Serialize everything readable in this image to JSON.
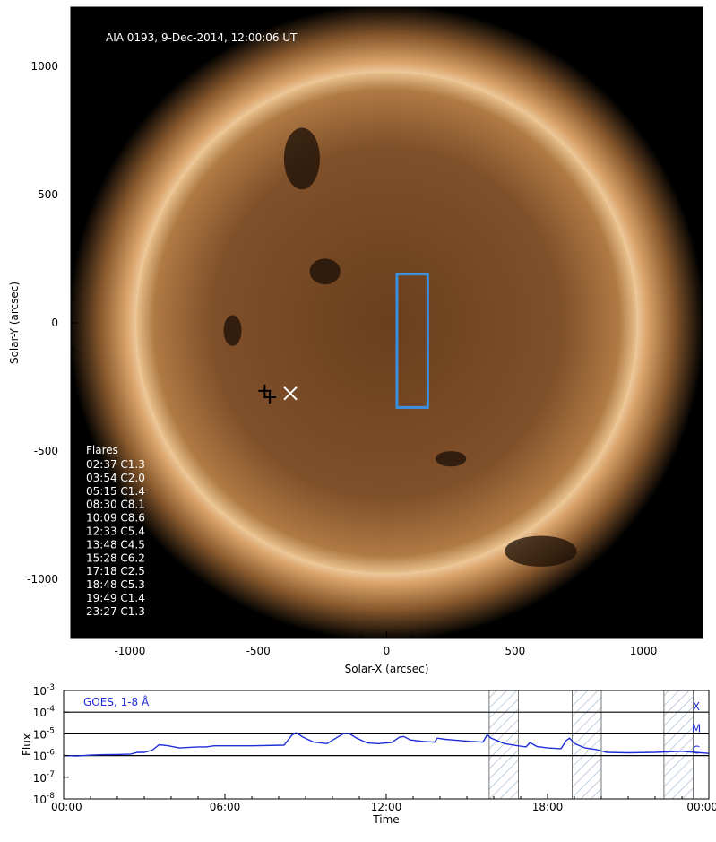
{
  "chart_data": [
    {
      "type": "image",
      "title": "AIA 0193, 9-Dec-2014, 12:00:06 UT",
      "xlabel": "Solar-X (arcsec)",
      "ylabel": "Solar-Y (arcsec)",
      "xlim": [
        -1230,
        1230
      ],
      "ylim": [
        -1230,
        1230
      ],
      "xticks": [
        -1000,
        -500,
        0,
        500,
        1000
      ],
      "yticks": [
        1000,
        500,
        0,
        -500,
        -1000
      ],
      "xtick_labels": [
        "-1000",
        "-500",
        "0",
        "500",
        "1000"
      ],
      "ytick_labels": [
        "1000",
        "500",
        "0",
        "-500",
        "-1000"
      ],
      "solar_radius_arcsec": 975,
      "colors": {
        "background": "#000000",
        "disk": "#7a4a22",
        "corona": "#d9a36a",
        "box": "#3b8fe0"
      },
      "box_region": {
        "x": [
          40,
          160
        ],
        "y": [
          -330,
          190
        ]
      },
      "markers": [
        {
          "symbol": "+",
          "x": -475,
          "y": -265,
          "color": "#000000"
        },
        {
          "symbol": "+",
          "x": -455,
          "y": -290,
          "color": "#000000"
        },
        {
          "symbol": "x",
          "x": -375,
          "y": -275,
          "color": "#ffffff"
        }
      ],
      "flares_header": "Flares",
      "flares": [
        "02:37 C1.3",
        "03:54 C2.0",
        "05:15 C1.4",
        "08:30 C8.1",
        "10:09 C8.6",
        "12:33 C5.4",
        "13:48 C4.5",
        "15:28 C6.2",
        "17:18 C2.5",
        "18:48 C5.3",
        "19:49 C1.4",
        "23:27 C1.3"
      ]
    },
    {
      "type": "line",
      "legend": "GOES, 1-8 Å",
      "xlabel": "Time",
      "ylabel": "Flux",
      "xlim": [
        0,
        24
      ],
      "ylog": true,
      "ylim_exp": [
        -8,
        -3
      ],
      "ytick_exps": [
        -3,
        -4,
        -5,
        -6,
        -7,
        -8
      ],
      "xticks": [
        0,
        6,
        12,
        18,
        24
      ],
      "xtick_labels": [
        "00:00",
        "06:00",
        "12:00",
        "18:00",
        "00:00"
      ],
      "class_lines": [
        {
          "label": "X",
          "exp": -4
        },
        {
          "label": "M",
          "exp": -5
        },
        {
          "label": "C",
          "exp": -6
        }
      ],
      "hatched_intervals": [
        [
          15.83,
          16.92
        ],
        [
          18.92,
          20.0
        ],
        [
          22.33,
          23.42
        ]
      ],
      "series_color": "#1f2fd8",
      "x": [
        0,
        0.5,
        1.0,
        1.5,
        2.0,
        2.5,
        2.75,
        3.0,
        3.3,
        3.55,
        3.9,
        4.3,
        5.0,
        5.3,
        5.6,
        6.0,
        7.0,
        8.2,
        8.5,
        8.65,
        8.9,
        9.3,
        9.8,
        10.15,
        10.4,
        10.6,
        10.9,
        11.3,
        11.7,
        12.2,
        12.5,
        12.65,
        12.9,
        13.4,
        13.8,
        13.9,
        14.2,
        14.8,
        15.2,
        15.6,
        15.75,
        15.9,
        16.4,
        16.9,
        17.2,
        17.35,
        17.6,
        18.0,
        18.5,
        18.7,
        18.82,
        19.0,
        19.4,
        19.8,
        20.2,
        21.0,
        22.0,
        23.0,
        23.5,
        24.0
      ],
      "y_exp": [
        -6.0,
        -6.02,
        -5.98,
        -5.96,
        -5.95,
        -5.93,
        -5.85,
        -5.85,
        -5.75,
        -5.5,
        -5.55,
        -5.65,
        -5.6,
        -5.6,
        -5.55,
        -5.55,
        -5.55,
        -5.52,
        -5.05,
        -4.95,
        -5.15,
        -5.38,
        -5.45,
        -5.18,
        -5.0,
        -4.97,
        -5.2,
        -5.42,
        -5.45,
        -5.4,
        -5.15,
        -5.12,
        -5.28,
        -5.35,
        -5.38,
        -5.2,
        -5.25,
        -5.32,
        -5.35,
        -5.38,
        -5.05,
        -5.2,
        -5.45,
        -5.55,
        -5.6,
        -5.4,
        -5.58,
        -5.65,
        -5.68,
        -5.3,
        -5.2,
        -5.45,
        -5.65,
        -5.72,
        -5.85,
        -5.87,
        -5.85,
        -5.8,
        -5.85,
        -5.9
      ]
    }
  ]
}
